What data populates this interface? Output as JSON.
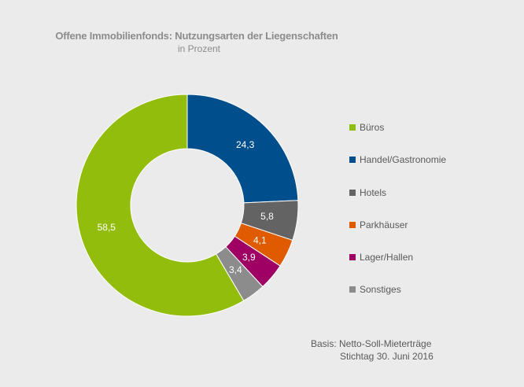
{
  "chart_data": {
    "type": "pie",
    "title": "Offene Immobilienfonds:  Nutzungsarten der Liegenschaften",
    "subtitle": "in Prozent",
    "donut": true,
    "slices": [
      {
        "label": "Handel/Gastronomie",
        "value": 24.3,
        "display": "24,3",
        "color": "#004f8c",
        "label_color": "#ffffff"
      },
      {
        "label": "Hotels",
        "value": 5.8,
        "display": "5,8",
        "color": "#636363",
        "label_color": "#ffffff"
      },
      {
        "label": "Parkhäuser",
        "value": 4.1,
        "display": "4,1",
        "color": "#e05a00",
        "label_color": "#ffffff"
      },
      {
        "label": "Lager/Hallen",
        "value": 3.9,
        "display": "3,9",
        "color": "#9e0064",
        "label_color": "#ffffff"
      },
      {
        "label": "Sonstiges",
        "value": 3.4,
        "display": "3,4",
        "color": "#8c8c8c",
        "label_color": "#ffffff"
      },
      {
        "label": "Büros",
        "value": 58.5,
        "display": "58,5",
        "color": "#93bd0d",
        "label_color": "#ffffff"
      }
    ],
    "legend": [
      "Büros",
      "Handel/Gastronomie",
      "Hotels",
      "Parkhäuser",
      "Lager/Hallen",
      "Sonstiges"
    ],
    "legend_position": "right"
  },
  "footnote": {
    "line1": "Basis: Netto-Soll-Mieterträge",
    "line2": "Stichtag 30. Juni 2016"
  }
}
